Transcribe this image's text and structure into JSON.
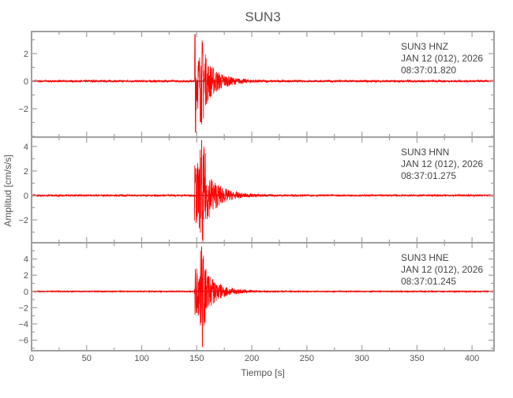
{
  "chart_data": {
    "type": "line",
    "title": "SUN3",
    "xlabel": "Tiempo [s]",
    "ylabel": "Amplitud [cm/s/s]",
    "xlim": [
      0,
      420
    ],
    "xticks": [
      0,
      50,
      100,
      150,
      200,
      250,
      300,
      350,
      400
    ],
    "line_color": "#ff0000",
    "frame_color": "#a0a0a0",
    "grid": false,
    "panels": [
      {
        "station": "SUN3",
        "channel": "HNZ",
        "date": "JAN 12 (012), 2026",
        "time": "08:37:01.820",
        "ylim": [
          -4.06,
          3.6
        ],
        "yticks": [
          -2,
          0,
          2
        ],
        "onset_s": 148,
        "peak_max": 3.4,
        "peak_min": -3.7
      },
      {
        "station": "SUN3",
        "channel": "HNN",
        "date": "JAN 12 (012), 2026",
        "time": "08:37:01.275",
        "ylim": [
          -3.87,
          4.77
        ],
        "yticks": [
          -2,
          0,
          2,
          4
        ],
        "onset_s": 148,
        "peak_max": 4.5,
        "peak_min": -3.6
      },
      {
        "station": "SUN3",
        "channel": "HNE",
        "date": "JAN 12 (012), 2026",
        "time": "08:37:01.245",
        "ylim": [
          -7.3,
          6.0
        ],
        "yticks": [
          -6,
          -4,
          -2,
          0,
          2,
          4
        ],
        "onset_s": 148,
        "peak_max": 5.5,
        "peak_min": -6.8
      }
    ]
  }
}
